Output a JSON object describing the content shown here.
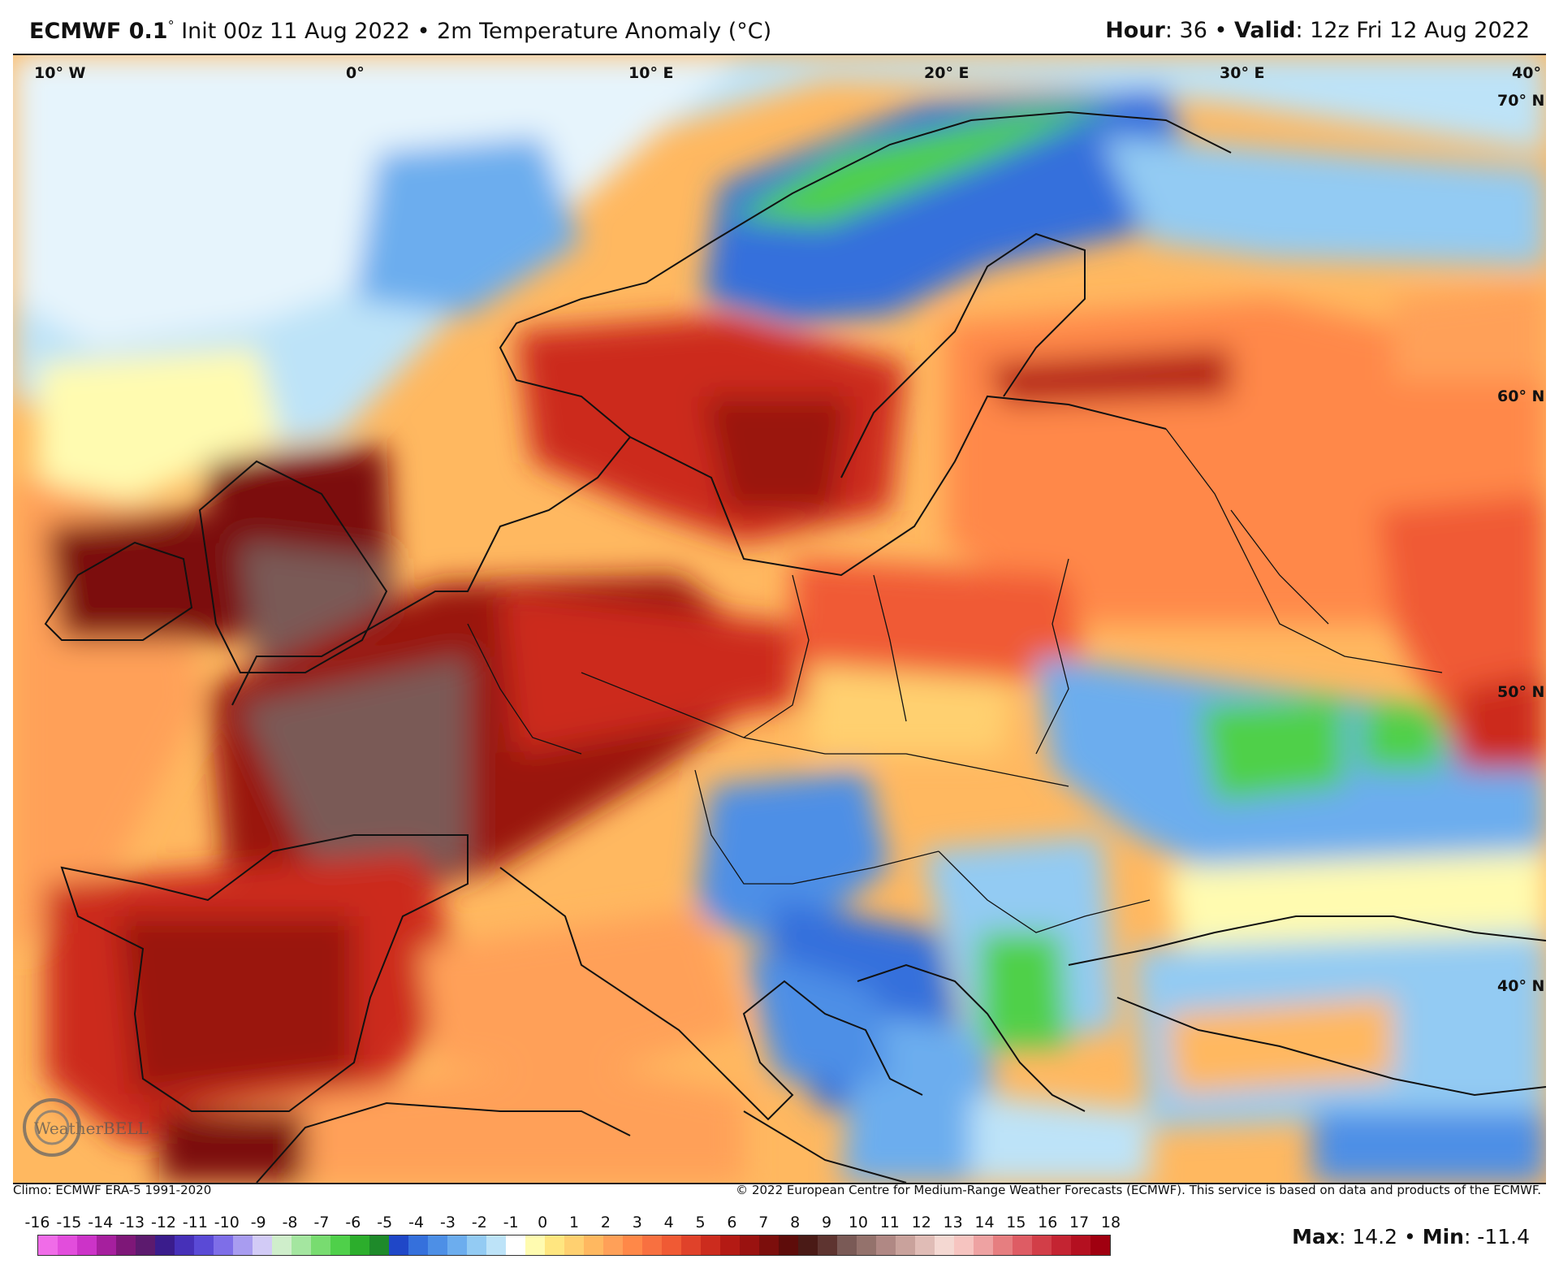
{
  "header": {
    "model": "ECMWF 0.1",
    "degree": "°",
    "init_text": "Init 00z 11 Aug 2022 • 2m Temperature Anomaly (°C)",
    "hour_label": "Hour",
    "hour_value": ": 36 • ",
    "valid_label": "Valid",
    "valid_value": ": 12z Fri 12 Aug 2022"
  },
  "map": {
    "longitude_labels": [
      "10° W",
      "0°",
      "10° E",
      "20° E",
      "30° E",
      "40° E"
    ],
    "latitude_labels": [
      "70° N",
      "60° N",
      "50° N",
      "40° N"
    ],
    "logo_text": "WeatherBELL"
  },
  "footer": {
    "climo": "Climo: ECMWF ERA-5 1991-2020",
    "copyright": "© 2022 European Centre for Medium-Range Weather Forecasts (ECMWF). This service is based on data and products of the ECMWF."
  },
  "scale": {
    "labels": [
      "-16",
      "-15",
      "-14",
      "-13",
      "-12",
      "-11",
      "-10",
      "-9",
      "-8",
      "-7",
      "-6",
      "-5",
      "-4",
      "-3",
      "-2",
      "-1",
      "0",
      "1",
      "2",
      "3",
      "4",
      "5",
      "6",
      "7",
      "8",
      "9",
      "10",
      "11",
      "12",
      "13",
      "14",
      "15",
      "16",
      "17",
      "18"
    ],
    "colors": [
      "#f06ce8",
      "#e24ddc",
      "#cc33c8",
      "#a61f9e",
      "#7e1778",
      "#5c1a6e",
      "#3a1c8c",
      "#4630b8",
      "#5a4ad6",
      "#7e6ee8",
      "#a89cf0",
      "#d2cbf6",
      "#cfeecb",
      "#a4e6a0",
      "#78dc70",
      "#4fd04a",
      "#2cae2c",
      "#1e8a2a",
      "#1f47c8",
      "#3570dc",
      "#4d8fe6",
      "#6cadee",
      "#93cbf3",
      "#bde3f8",
      "#ffffff",
      "#fffbb0",
      "#ffe680",
      "#ffd070",
      "#ffb860",
      "#ffa058",
      "#ff8848",
      "#f87040",
      "#f05a34",
      "#e0422a",
      "#cc2c1e",
      "#b41a14",
      "#9a1210",
      "#7c0e0c",
      "#5e0c0a",
      "#4a1a16",
      "#5e3430",
      "#7a5a56",
      "#94726c",
      "#b08884",
      "#c9a29c",
      "#e0bcb6",
      "#f4d8d2",
      "#f6c4c0",
      "#eea2a2",
      "#e67e80",
      "#de5c64",
      "#d23e48",
      "#c42432",
      "#b41020",
      "#a00010"
    ],
    "max_label": "Max",
    "max_value": ": 14.2 • ",
    "min_label": "Min",
    "min_value": ": -11.4"
  }
}
